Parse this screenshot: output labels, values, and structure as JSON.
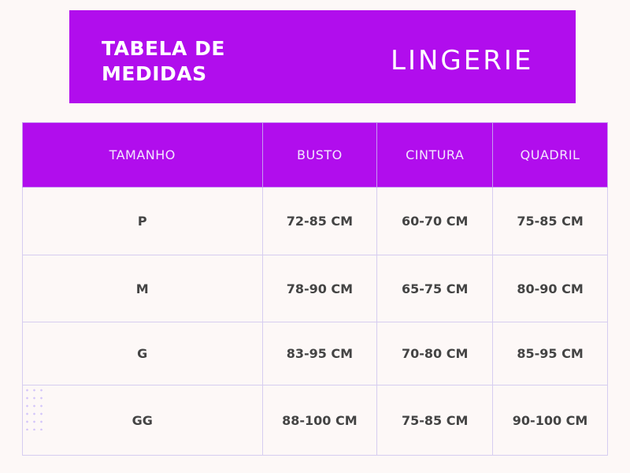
{
  "banner": {
    "title": "TABELA DE MEDIDAS",
    "subtitle": "LINGERIE"
  },
  "colors": {
    "accent": "#b10ded",
    "background": "#fdf8f7"
  },
  "table": {
    "headers": [
      "TAMANHO",
      "BUSTO",
      "CINTURA",
      "QUADRIL"
    ],
    "rows": [
      [
        "P",
        "72-85 CM",
        "60-70 CM",
        "75-85 CM"
      ],
      [
        "M",
        "78-90 CM",
        "65-75 CM",
        "80-90 CM"
      ],
      [
        "G",
        "83-95 CM",
        "70-80 CM",
        "85-95 CM"
      ],
      [
        "GG",
        "88-100 CM",
        "75-85 CM",
        "90-100 CM"
      ]
    ]
  }
}
